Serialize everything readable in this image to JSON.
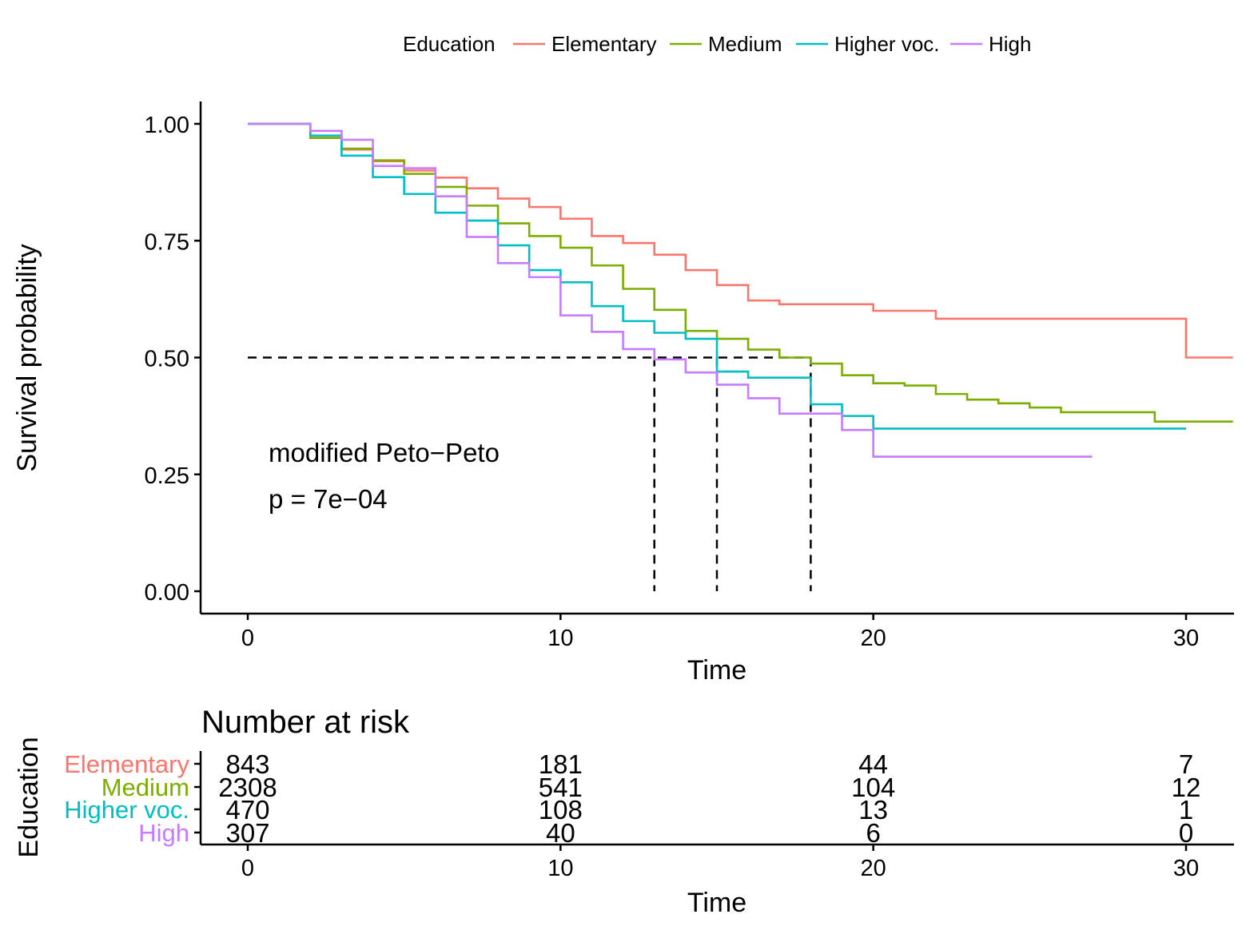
{
  "chart_data": {
    "type": "line",
    "subtype": "kaplan-meier step",
    "legend": {
      "title": "Education",
      "position": "top",
      "entries": [
        "Elementary",
        "Medium",
        "Higher voc.",
        "High"
      ]
    },
    "colors": {
      "Elementary": "#F8766D",
      "Medium": "#7CAE00",
      "Higher voc.": "#00BFC4",
      "High": "#C77CFF"
    },
    "ylabel": "Survival probability",
    "xlabel": "Time",
    "xlim": [
      -1.5,
      31.5
    ],
    "ylim": [
      -0.05,
      1.05
    ],
    "xticks": [
      "0",
      "10",
      "20",
      "30"
    ],
    "yticks": [
      "0.00",
      "0.25",
      "0.50",
      "0.75",
      "1.00"
    ],
    "grid": false,
    "annotation": {
      "method": "modified Peto−Peto",
      "pvalue": "p = 7e−04"
    },
    "median_lines": {
      "level": 0.5,
      "times": [
        13,
        15,
        18
      ]
    },
    "series": [
      {
        "name": "Elementary",
        "points": [
          [
            0,
            1.0
          ],
          [
            2,
            0.97
          ],
          [
            3,
            0.945
          ],
          [
            4,
            0.92
          ],
          [
            5,
            0.9
          ],
          [
            6,
            0.885
          ],
          [
            7,
            0.862
          ],
          [
            8,
            0.84
          ],
          [
            9,
            0.822
          ],
          [
            10,
            0.797
          ],
          [
            11,
            0.76
          ],
          [
            12,
            0.745
          ],
          [
            13,
            0.72
          ],
          [
            14,
            0.687
          ],
          [
            15,
            0.655
          ],
          [
            16,
            0.622
          ],
          [
            17,
            0.614
          ],
          [
            20,
            0.6
          ],
          [
            22,
            0.583
          ],
          [
            30,
            0.5
          ],
          [
            31.5,
            0.5
          ]
        ]
      },
      {
        "name": "Medium",
        "points": [
          [
            0,
            1.0
          ],
          [
            2,
            0.97
          ],
          [
            3,
            0.947
          ],
          [
            4,
            0.922
          ],
          [
            5,
            0.893
          ],
          [
            6,
            0.865
          ],
          [
            7,
            0.825
          ],
          [
            8,
            0.787
          ],
          [
            9,
            0.76
          ],
          [
            10,
            0.735
          ],
          [
            11,
            0.697
          ],
          [
            12,
            0.647
          ],
          [
            13,
            0.602
          ],
          [
            14,
            0.557
          ],
          [
            15,
            0.54
          ],
          [
            16,
            0.517
          ],
          [
            17,
            0.5
          ],
          [
            18,
            0.487
          ],
          [
            19,
            0.462
          ],
          [
            20,
            0.445
          ],
          [
            21,
            0.44
          ],
          [
            22,
            0.422
          ],
          [
            23,
            0.41
          ],
          [
            24,
            0.402
          ],
          [
            25,
            0.393
          ],
          [
            26,
            0.383
          ],
          [
            29,
            0.363
          ],
          [
            31.5,
            0.363
          ]
        ]
      },
      {
        "name": "Higher voc.",
        "points": [
          [
            0,
            1.0
          ],
          [
            2,
            0.975
          ],
          [
            3,
            0.932
          ],
          [
            4,
            0.886
          ],
          [
            5,
            0.85
          ],
          [
            6,
            0.81
          ],
          [
            7,
            0.793
          ],
          [
            8,
            0.74
          ],
          [
            9,
            0.687
          ],
          [
            10,
            0.661
          ],
          [
            11,
            0.61
          ],
          [
            12,
            0.578
          ],
          [
            13,
            0.553
          ],
          [
            14,
            0.54
          ],
          [
            15,
            0.47
          ],
          [
            16,
            0.457
          ],
          [
            18,
            0.4
          ],
          [
            19,
            0.375
          ],
          [
            20,
            0.348
          ],
          [
            30,
            0.348
          ]
        ]
      },
      {
        "name": "High",
        "points": [
          [
            0,
            1.0
          ],
          [
            2,
            0.985
          ],
          [
            3,
            0.966
          ],
          [
            4,
            0.91
          ],
          [
            5,
            0.905
          ],
          [
            6,
            0.845
          ],
          [
            7,
            0.758
          ],
          [
            8,
            0.702
          ],
          [
            9,
            0.672
          ],
          [
            10,
            0.59
          ],
          [
            11,
            0.555
          ],
          [
            12,
            0.518
          ],
          [
            13,
            0.496
          ],
          [
            14,
            0.468
          ],
          [
            15,
            0.442
          ],
          [
            16,
            0.413
          ],
          [
            17,
            0.38
          ],
          [
            19,
            0.345
          ],
          [
            20,
            0.288
          ],
          [
            27,
            0.288
          ]
        ]
      }
    ],
    "risk_table": {
      "title": "Number at risk",
      "ylabel": "Education",
      "xlabel": "Time",
      "times": [
        "0",
        "10",
        "20",
        "30"
      ],
      "rows": [
        {
          "name": "Elementary",
          "values": [
            "843",
            "181",
            "44",
            "7"
          ]
        },
        {
          "name": "Medium",
          "values": [
            "2308",
            "541",
            "104",
            "12"
          ]
        },
        {
          "name": "Higher voc.",
          "values": [
            "470",
            "108",
            "13",
            "1"
          ]
        },
        {
          "name": "High",
          "values": [
            "307",
            "40",
            "6",
            "0"
          ]
        }
      ]
    }
  }
}
